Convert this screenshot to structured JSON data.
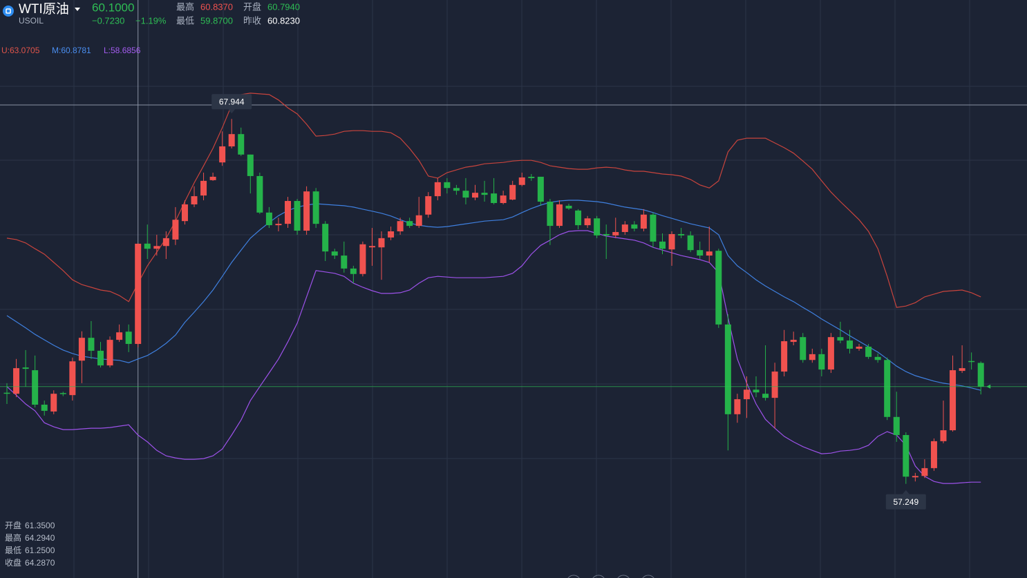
{
  "header": {
    "name": "WTI原油",
    "code": "USOIL",
    "price": "60.1000",
    "change": "−0.7230",
    "change_pct": "−1.19%",
    "stats": [
      {
        "label": "最高",
        "value": "60.8370"
      },
      {
        "label": "开盘",
        "value": "60.7940"
      },
      {
        "label": "最低",
        "value": "59.8700"
      },
      {
        "label": "昨收",
        "value": "60.8230"
      }
    ]
  },
  "indicator_legend": [
    "U:63.0705",
    "M:60.8781",
    "L:58.6856"
  ],
  "readout": [
    {
      "label": "开盘",
      "value": "61.3500"
    },
    {
      "label": "最高",
      "value": "64.2940"
    },
    {
      "label": "最低",
      "value": "61.2500"
    },
    {
      "label": "收盘",
      "value": "64.2870"
    }
  ],
  "chart_data": {
    "type": "candlestick",
    "ylim": [
      54.49,
      71.43
    ],
    "up_color": "#f0524f",
    "down_color": "#25b34a",
    "max_label": 67.944,
    "min_label": 57.249,
    "open": [
      59.92,
      59.89,
      60.66,
      60.58,
      59.57,
      59.37,
      59.91,
      59.85,
      60.86,
      61.53,
      61.15,
      60.72,
      61.47,
      61.71,
      61.35,
      64.29,
      64.14,
      64.22,
      64.41,
      64.95,
      65.44,
      65.7,
      66.15,
      66.67,
      67.14,
      67.5,
      66.9,
      66.27,
      65.2,
      64.83,
      64.87,
      65.54,
      64.67,
      65.82,
      64.87,
      64.06,
      63.94,
      63.56,
      63.4,
      64.18,
      64.18,
      64.47,
      64.65,
      64.95,
      64.81,
      65.14,
      65.68,
      66.09,
      65.92,
      65.84,
      65.64,
      65.78,
      65.76,
      65.48,
      65.58,
      66.01,
      66.25,
      66.25,
      65.52,
      64.81,
      65.4,
      65.26,
      64.83,
      65.03,
      64.57,
      64.53,
      64.63,
      64.85,
      64.73,
      65.14,
      64.35,
      64.12,
      64.57,
      64.53,
      64.1,
      63.94,
      64.08,
      61.92,
      59.29,
      59.73,
      60.01,
      59.89,
      59.77,
      60.54,
      61.41,
      61.55,
      60.88,
      61.05,
      60.6,
      61.55,
      61.45,
      61.21,
      61.27,
      60.97,
      60.88,
      59.21,
      58.68,
      57.44,
      57.48,
      57.71,
      58.5,
      58.82,
      60.56,
      60.85,
      60.794
    ],
    "high": [
      60.2,
      60.91,
      61.17,
      61.01,
      59.69,
      59.99,
      59.95,
      60.95,
      61.72,
      62.02,
      61.41,
      61.57,
      61.92,
      61.92,
      64.294,
      64.85,
      64.55,
      64.65,
      65.36,
      65.56,
      65.97,
      66.37,
      66.37,
      67.58,
      67.944,
      67.69,
      66.9,
      66.37,
      65.36,
      65.05,
      65.66,
      65.6,
      65.97,
      65.92,
      64.95,
      64.14,
      64.35,
      63.64,
      64.35,
      64.75,
      64.65,
      64.79,
      65.05,
      65.05,
      65.66,
      65.8,
      66.21,
      66.21,
      66.01,
      66.21,
      66.01,
      66.13,
      66.21,
      65.84,
      66.13,
      66.37,
      66.33,
      66.25,
      65.6,
      65.56,
      65.46,
      65.3,
      65.1,
      65.1,
      64.85,
      65.05,
      64.95,
      64.95,
      65.3,
      65.2,
      64.59,
      64.65,
      64.75,
      64.65,
      64.35,
      64.79,
      64.14,
      62.22,
      59.89,
      60.4,
      60.4,
      61.31,
      60.8,
      61.76,
      61.71,
      61.67,
      61.21,
      61.21,
      61.67,
      62.0,
      61.76,
      61.35,
      61.35,
      61.07,
      60.95,
      59.95,
      58.76,
      57.57,
      57.97,
      58.58,
      59.69,
      61.01,
      61.31,
      61.1,
      60.837
    ],
    "low": [
      59.59,
      59.79,
      60.1,
      59.49,
      59.25,
      59.29,
      59.82,
      59.69,
      60.2,
      60.91,
      60.66,
      60.66,
      61.41,
      61.11,
      61.25,
      63.84,
      63.94,
      63.84,
      64.25,
      64.85,
      65.36,
      65.56,
      66.13,
      66.57,
      67.08,
      66.86,
      65.76,
      65.16,
      64.75,
      64.65,
      64.75,
      64.55,
      64.55,
      64.75,
      63.78,
      63.84,
      63.44,
      63.13,
      63.33,
      63.64,
      63.23,
      64.39,
      64.55,
      64.75,
      64.75,
      65.05,
      65.56,
      65.76,
      65.72,
      65.44,
      65.56,
      65.52,
      65.44,
      65.44,
      65.56,
      65.97,
      66.13,
      65.4,
      64.25,
      64.75,
      65.28,
      64.71,
      64.75,
      64.45,
      63.84,
      64.45,
      64.55,
      64.65,
      64.65,
      64.18,
      63.98,
      63.64,
      64.45,
      64.04,
      63.84,
      63.74,
      61.82,
      58.23,
      59.04,
      59.18,
      59.79,
      59.69,
      58.88,
      60.4,
      61.31,
      60.8,
      60.8,
      60.4,
      60.5,
      61.37,
      61.07,
      61.15,
      60.91,
      60.8,
      59.12,
      58.48,
      57.249,
      57.32,
      57.42,
      57.63,
      58.44,
      58.78,
      60.5,
      60.6,
      59.87
    ],
    "close": [
      59.89,
      60.64,
      60.62,
      59.57,
      59.39,
      59.89,
      59.88,
      60.84,
      61.53,
      61.15,
      60.72,
      61.47,
      61.69,
      61.35,
      64.287,
      64.14,
      64.22,
      64.45,
      64.99,
      65.44,
      65.68,
      66.13,
      66.25,
      67.14,
      67.5,
      66.9,
      66.27,
      65.2,
      64.83,
      64.87,
      65.54,
      64.67,
      65.82,
      64.87,
      64.06,
      63.94,
      63.56,
      63.4,
      64.27,
      64.22,
      64.45,
      64.65,
      64.95,
      64.81,
      65.12,
      65.68,
      66.09,
      65.92,
      65.84,
      65.64,
      65.78,
      65.72,
      65.48,
      65.7,
      66.01,
      66.23,
      66.21,
      65.52,
      64.81,
      65.44,
      65.32,
      64.83,
      65.03,
      64.53,
      64.53,
      64.63,
      64.85,
      64.73,
      65.14,
      64.35,
      64.14,
      64.57,
      64.53,
      64.1,
      63.94,
      64.06,
      61.92,
      59.29,
      59.73,
      60.01,
      59.93,
      59.77,
      60.54,
      61.43,
      61.47,
      60.88,
      61.05,
      60.6,
      61.55,
      61.45,
      61.21,
      61.27,
      60.97,
      60.88,
      59.21,
      58.68,
      57.46,
      57.48,
      57.71,
      58.5,
      58.82,
      60.58,
      60.64,
      60.823,
      60.1
    ],
    "bands": [
      {
        "color": "#c9443d",
        "values": [
          64.45,
          64.41,
          64.31,
          64.14,
          63.98,
          63.74,
          63.5,
          63.23,
          63.09,
          63.01,
          62.93,
          62.89,
          62.77,
          62.59,
          63.13,
          63.64,
          64.04,
          64.45,
          64.95,
          65.52,
          66.07,
          66.57,
          67.08,
          67.69,
          68.35,
          68.66,
          68.7,
          68.68,
          68.66,
          68.5,
          68.27,
          68.09,
          67.79,
          67.44,
          67.46,
          67.5,
          67.58,
          67.6,
          67.6,
          67.58,
          67.58,
          67.54,
          67.38,
          67.08,
          66.73,
          66.27,
          66.21,
          66.37,
          66.45,
          66.53,
          66.57,
          66.63,
          66.65,
          66.67,
          66.71,
          66.73,
          66.73,
          66.67,
          66.57,
          66.53,
          66.49,
          66.47,
          66.47,
          66.51,
          66.53,
          66.51,
          66.45,
          66.41,
          66.41,
          66.37,
          66.33,
          66.31,
          66.27,
          66.17,
          66.01,
          65.92,
          66.13,
          66.98,
          67.32,
          67.38,
          67.38,
          67.38,
          67.24,
          67.1,
          66.94,
          66.71,
          66.47,
          66.13,
          65.8,
          65.52,
          65.26,
          64.99,
          64.65,
          64.14,
          63.33,
          62.42,
          62.46,
          62.56,
          62.73,
          62.81,
          62.89,
          62.91,
          62.93,
          62.85,
          62.73
        ]
      },
      {
        "color": "#3f80e0",
        "values": [
          62.18,
          62.0,
          61.82,
          61.63,
          61.47,
          61.31,
          61.17,
          61.07,
          60.99,
          60.95,
          60.91,
          60.89,
          60.87,
          60.8,
          60.91,
          61.01,
          61.17,
          61.37,
          61.61,
          61.98,
          62.28,
          62.59,
          62.93,
          63.33,
          63.74,
          64.1,
          64.45,
          64.69,
          64.91,
          65.11,
          65.26,
          65.36,
          65.42,
          65.46,
          65.44,
          65.42,
          65.4,
          65.36,
          65.3,
          65.24,
          65.18,
          65.1,
          64.99,
          64.89,
          64.83,
          64.79,
          64.77,
          64.79,
          64.83,
          64.87,
          64.91,
          64.95,
          64.97,
          64.99,
          65.07,
          65.2,
          65.32,
          65.42,
          65.5,
          65.54,
          65.56,
          65.56,
          65.54,
          65.52,
          65.48,
          65.42,
          65.36,
          65.32,
          65.28,
          65.2,
          65.11,
          65.03,
          64.95,
          64.87,
          64.81,
          64.75,
          64.55,
          63.94,
          63.64,
          63.44,
          63.23,
          63.05,
          62.89,
          62.73,
          62.59,
          62.42,
          62.26,
          62.08,
          61.92,
          61.76,
          61.59,
          61.43,
          61.27,
          61.11,
          60.91,
          60.7,
          60.54,
          60.42,
          60.34,
          60.26,
          60.2,
          60.16,
          60.12,
          60.06,
          59.99
        ]
      },
      {
        "color": "#9d52ea",
        "values": [
          60.1,
          59.85,
          59.59,
          59.39,
          59.04,
          58.92,
          58.84,
          58.84,
          58.86,
          58.88,
          58.88,
          58.9,
          58.94,
          58.98,
          58.68,
          58.48,
          58.23,
          58.07,
          58.01,
          57.97,
          57.97,
          57.99,
          58.07,
          58.27,
          58.68,
          59.12,
          59.69,
          60.1,
          60.5,
          60.91,
          61.41,
          61.96,
          62.73,
          63.5,
          63.46,
          63.42,
          63.33,
          63.13,
          63.01,
          62.91,
          62.83,
          62.83,
          62.85,
          62.93,
          63.13,
          63.29,
          63.33,
          63.31,
          63.29,
          63.29,
          63.29,
          63.29,
          63.31,
          63.33,
          63.42,
          63.64,
          63.98,
          64.24,
          64.39,
          64.55,
          64.65,
          64.67,
          64.67,
          64.59,
          64.51,
          64.47,
          64.43,
          64.39,
          64.31,
          64.18,
          64.1,
          64.02,
          63.94,
          63.88,
          63.82,
          63.74,
          63.44,
          62.12,
          60.91,
          60.2,
          59.59,
          59.14,
          58.88,
          58.64,
          58.48,
          58.34,
          58.23,
          58.13,
          58.15,
          58.21,
          58.23,
          58.27,
          58.38,
          58.64,
          58.78,
          58.68,
          58.38,
          57.77,
          57.47,
          57.32,
          57.26,
          57.26,
          57.28,
          57.3,
          57.3
        ]
      }
    ]
  }
}
